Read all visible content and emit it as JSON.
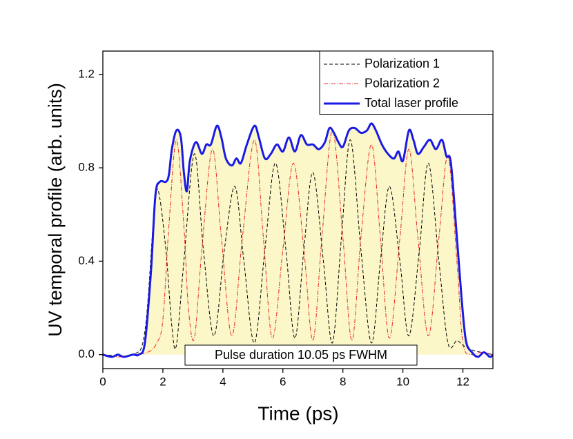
{
  "chart_data": {
    "type": "line",
    "x_label": "Time (ps)",
    "y_label": "UV temporal profile (arb. units)",
    "annotation": "Pulse duration 10.05 ps FWHM",
    "xlim": [
      0,
      13
    ],
    "xticks": [
      0,
      2,
      4,
      6,
      8,
      10,
      12
    ],
    "ylim": [
      -0.06,
      1.3
    ],
    "yticks": [
      {
        "value": 0,
        "label": "0.0"
      },
      0.4,
      0.8,
      1.2
    ],
    "grid": false,
    "legend": "upper right",
    "series": [
      {
        "name": "Polarization 1",
        "color": "#000000",
        "linestyle": "dashed",
        "x": [
          0,
          1.0,
          1.4,
          1.7,
          1.85,
          2.1,
          2.3,
          2.45,
          2.7,
          3.05,
          3.35,
          3.7,
          4.05,
          4.4,
          4.7,
          5.05,
          5.4,
          5.75,
          6.1,
          6.4,
          6.7,
          7.0,
          7.35,
          7.65,
          7.95,
          8.25,
          8.6,
          8.95,
          9.25,
          9.55,
          9.9,
          10.2,
          10.55,
          10.85,
          11.2,
          11.5,
          11.8,
          12.0,
          12.3,
          12.6,
          13
        ],
        "values": [
          0,
          0,
          0.1,
          0.6,
          0.7,
          0.45,
          0.12,
          0.04,
          0.4,
          0.86,
          0.45,
          0.08,
          0.45,
          0.72,
          0.4,
          0.05,
          0.45,
          0.82,
          0.45,
          0.07,
          0.45,
          0.78,
          0.4,
          0.05,
          0.5,
          0.92,
          0.45,
          0.05,
          0.4,
          0.72,
          0.4,
          0.08,
          0.45,
          0.82,
          0.4,
          0.05,
          0.06,
          0.04,
          0.02,
          0.01,
          0
        ]
      },
      {
        "name": "Polarization 2",
        "color": "#e8251b",
        "linestyle": "dashdot",
        "x": [
          0,
          0.5,
          1.0,
          1.5,
          1.8,
          2.0,
          2.2,
          2.45,
          2.7,
          2.85,
          3.05,
          3.3,
          3.65,
          3.95,
          4.3,
          4.65,
          5.05,
          5.35,
          5.65,
          6.0,
          6.35,
          6.7,
          7.0,
          7.3,
          7.65,
          8.0,
          8.3,
          8.6,
          8.95,
          9.25,
          9.55,
          9.9,
          10.2,
          10.5,
          10.85,
          11.2,
          11.5,
          11.8,
          12.0,
          12.3,
          12.6,
          13
        ],
        "values": [
          0,
          -0.01,
          0,
          0.01,
          0.05,
          0.15,
          0.55,
          0.92,
          0.55,
          0.2,
          0.07,
          0.45,
          0.88,
          0.5,
          0.08,
          0.5,
          0.92,
          0.5,
          0.07,
          0.45,
          0.82,
          0.45,
          0.06,
          0.5,
          0.96,
          0.5,
          0.06,
          0.5,
          0.9,
          0.5,
          0.07,
          0.5,
          0.88,
          0.5,
          0.08,
          0.5,
          0.85,
          0.4,
          0.05,
          0,
          0.01,
          0
        ]
      },
      {
        "name": "Total laser profile",
        "color": "#1a1ae6",
        "linestyle": "solid",
        "fill_color": "#fbf7c9",
        "x": [
          0,
          0.3,
          0.5,
          0.7,
          1.0,
          1.2,
          1.4,
          1.6,
          1.75,
          1.9,
          2.1,
          2.2,
          2.3,
          2.45,
          2.6,
          2.7,
          2.8,
          2.9,
          3.1,
          3.3,
          3.45,
          3.6,
          3.8,
          3.95,
          4.1,
          4.3,
          4.45,
          4.6,
          4.8,
          5.05,
          5.2,
          5.4,
          5.6,
          5.8,
          6.0,
          6.2,
          6.4,
          6.6,
          6.8,
          7.0,
          7.2,
          7.4,
          7.55,
          7.7,
          7.85,
          8.0,
          8.2,
          8.4,
          8.6,
          8.8,
          8.95,
          9.1,
          9.3,
          9.5,
          9.7,
          9.85,
          10.0,
          10.2,
          10.35,
          10.5,
          10.7,
          10.9,
          11.1,
          11.3,
          11.45,
          11.6,
          11.8,
          11.95,
          12.1,
          12.3,
          12.5,
          12.7,
          12.9,
          13
        ],
        "values": [
          0,
          -0.01,
          0,
          -0.01,
          0,
          0,
          0.05,
          0.35,
          0.68,
          0.74,
          0.74,
          0.77,
          0.88,
          0.96,
          0.93,
          0.78,
          0.7,
          0.83,
          0.91,
          0.86,
          0.9,
          0.9,
          0.98,
          0.93,
          0.84,
          0.81,
          0.84,
          0.82,
          0.9,
          0.98,
          0.93,
          0.84,
          0.86,
          0.9,
          0.87,
          0.93,
          0.87,
          0.94,
          0.9,
          0.9,
          0.88,
          0.91,
          0.97,
          0.95,
          0.91,
          0.89,
          0.96,
          0.97,
          0.95,
          0.96,
          0.99,
          0.96,
          0.9,
          0.86,
          0.84,
          0.87,
          0.83,
          0.96,
          0.92,
          0.86,
          0.89,
          0.92,
          0.88,
          0.92,
          0.85,
          0.82,
          0.5,
          0.25,
          0.06,
          0.01,
          -0.01,
          0.01,
          -0.01,
          0
        ]
      }
    ]
  }
}
